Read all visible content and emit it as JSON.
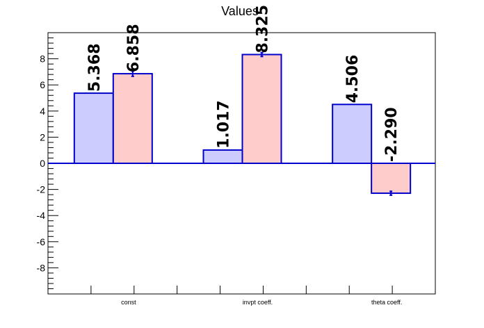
{
  "chart_data": {
    "type": "bar",
    "title": "Values",
    "xlabel": "",
    "ylabel": "",
    "categories": [
      "const",
      "invpt coeff.",
      "theta coeff."
    ],
    "ylim": [
      -10,
      10
    ],
    "y_ticks": [
      -8,
      -6,
      -4,
      -2,
      0,
      2,
      4,
      6,
      8
    ],
    "grid": false,
    "legend": "none",
    "series": [
      {
        "values": [
          5.368,
          1.017,
          4.506
        ],
        "value_labels": [
          "5.368",
          "1.017",
          "4.506"
        ],
        "fill": "#ccccff",
        "edge": "#0000cc",
        "has_error_bars": false
      },
      {
        "values": [
          6.858,
          8.325,
          -2.29
        ],
        "value_labels": [
          "6.858",
          "8.325",
          "-2.290"
        ],
        "errors": [
          0.2,
          0.15,
          0.15
        ],
        "fill": "#ffcccc",
        "edge": "#0000cc",
        "has_error_bars": true
      }
    ]
  }
}
